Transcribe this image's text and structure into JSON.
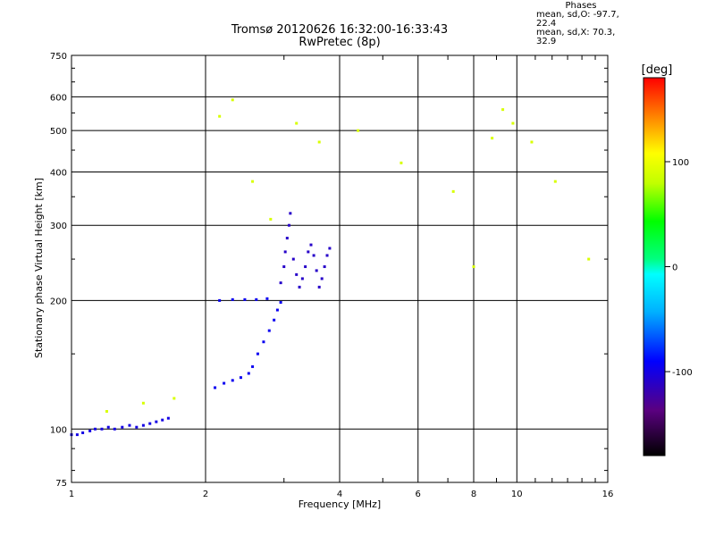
{
  "header": {
    "title_line1": "Tromsø 20120626 16:32:00-16:33:43",
    "title_line2": "RwPretec (8p)"
  },
  "phases": {
    "title": "Phases",
    "line_o": "mean, sd,O: -97.7, 22.4",
    "line_x": "mean, sd,X:  70.3, 32.9"
  },
  "colorbar": {
    "unit_label": "[deg]",
    "ticks": [
      "100",
      "0",
      "-100"
    ],
    "tick_values": [
      100,
      0,
      -100
    ],
    "range": [
      -180,
      180
    ]
  },
  "chart_data": {
    "type": "scatter",
    "title": "Tromsø 20120626 16:32:00-16:33:43",
    "subtitle": "RwPretec (8p)",
    "xlabel": "Frequency [MHz]",
    "ylabel": "Stationary phase Virtual Height [km]",
    "xscale": "log",
    "yscale": "log",
    "xlim": [
      1,
      16
    ],
    "ylim": [
      75,
      750
    ],
    "grid": true,
    "x_ticks": [
      1,
      2,
      4,
      6,
      8,
      10,
      16
    ],
    "x_tick_labels": [
      "1",
      "2",
      "4",
      "6",
      "8",
      "10",
      "16"
    ],
    "y_ticks": [
      75,
      100,
      200,
      300,
      400,
      500,
      600,
      750
    ],
    "y_tick_labels": [
      "75",
      "100",
      "200",
      "300",
      "400",
      "500",
      "600",
      "750"
    ],
    "color_variable": "phase [deg]",
    "series": [
      {
        "trace": "low-frequency echo trace (O-mode, blue)",
        "phase_deg": -100,
        "points": [
          [
            1.0,
            97
          ],
          [
            1.03,
            97
          ],
          [
            1.06,
            98
          ],
          [
            1.1,
            99
          ],
          [
            1.13,
            100
          ],
          [
            1.17,
            100
          ],
          [
            1.21,
            101
          ],
          [
            1.25,
            100
          ],
          [
            1.3,
            101
          ],
          [
            1.35,
            102
          ],
          [
            1.4,
            101
          ],
          [
            1.45,
            102
          ],
          [
            1.5,
            103
          ],
          [
            1.55,
            104
          ],
          [
            1.6,
            105
          ],
          [
            1.65,
            106
          ]
        ]
      },
      {
        "trace": "lower F-region trace (O-mode, blue)",
        "phase_deg": -95,
        "points": [
          [
            2.1,
            125
          ],
          [
            2.2,
            128
          ],
          [
            2.3,
            130
          ],
          [
            2.4,
            132
          ],
          [
            2.5,
            135
          ],
          [
            2.55,
            140
          ],
          [
            2.62,
            150
          ],
          [
            2.7,
            160
          ],
          [
            2.78,
            170
          ],
          [
            2.85,
            180
          ],
          [
            2.9,
            190
          ],
          [
            2.95,
            198
          ],
          [
            2.15,
            200
          ],
          [
            2.3,
            201
          ],
          [
            2.45,
            201
          ],
          [
            2.6,
            201
          ],
          [
            2.75,
            202
          ]
        ]
      },
      {
        "trace": "F2 spread echo cluster (purple/blue)",
        "phase_deg": -110,
        "points": [
          [
            2.95,
            220
          ],
          [
            3.0,
            240
          ],
          [
            3.02,
            260
          ],
          [
            3.05,
            280
          ],
          [
            3.08,
            300
          ],
          [
            3.1,
            320
          ],
          [
            3.15,
            250
          ],
          [
            3.2,
            230
          ],
          [
            3.25,
            215
          ],
          [
            3.3,
            225
          ],
          [
            3.35,
            240
          ],
          [
            3.4,
            260
          ],
          [
            3.45,
            270
          ],
          [
            3.5,
            255
          ],
          [
            3.55,
            235
          ],
          [
            3.6,
            215
          ],
          [
            3.65,
            225
          ],
          [
            3.7,
            240
          ],
          [
            3.75,
            255
          ],
          [
            3.8,
            265
          ]
        ]
      },
      {
        "trace": "sparse noise points (mixed phase)",
        "phase_deg": 90,
        "points": [
          [
            1.2,
            110
          ],
          [
            1.45,
            115
          ],
          [
            1.7,
            118
          ],
          [
            2.15,
            540
          ],
          [
            2.3,
            590
          ],
          [
            2.55,
            380
          ],
          [
            2.8,
            310
          ],
          [
            3.2,
            520
          ],
          [
            3.6,
            470
          ],
          [
            4.4,
            500
          ],
          [
            5.5,
            420
          ],
          [
            7.2,
            360
          ],
          [
            8.0,
            240
          ],
          [
            8.8,
            480
          ],
          [
            9.3,
            560
          ],
          [
            9.8,
            520
          ],
          [
            10.8,
            470
          ],
          [
            12.2,
            380
          ],
          [
            14.5,
            250
          ]
        ]
      }
    ]
  }
}
